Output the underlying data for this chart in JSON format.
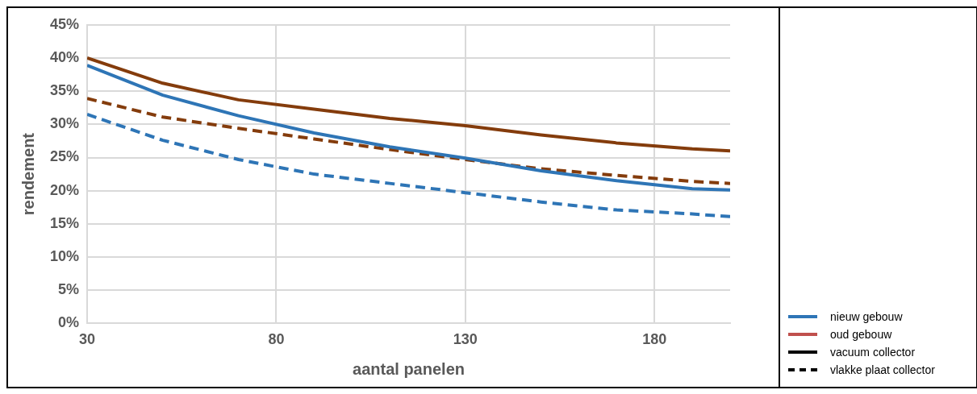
{
  "chart_data": {
    "type": "line",
    "xlabel": "aantal panelen",
    "ylabel": "rendement",
    "xlim": [
      30,
      200
    ],
    "xticks": [
      30,
      80,
      130,
      180
    ],
    "ylim": [
      0,
      45
    ],
    "yticks": [
      {
        "value": 0,
        "label": "0%"
      },
      {
        "value": 5,
        "label": "5%"
      },
      {
        "value": 10,
        "label": "10%"
      },
      {
        "value": 15,
        "label": "15%"
      },
      {
        "value": 20,
        "label": "20%"
      },
      {
        "value": 25,
        "label": "25%"
      },
      {
        "value": 30,
        "label": "30%"
      },
      {
        "value": 35,
        "label": "35%"
      },
      {
        "value": 40,
        "label": "40%"
      },
      {
        "value": 45,
        "label": "45%"
      }
    ],
    "grid": true,
    "marker": "none",
    "x": [
      30,
      50,
      70,
      90,
      110,
      130,
      150,
      170,
      190,
      200
    ],
    "series": [
      {
        "color": "#843c0c",
        "line_style": "solid",
        "values": [
          40,
          36.2,
          33.7,
          32.3,
          30.9,
          29.8,
          28.4,
          27.2,
          26.3,
          26.0
        ]
      },
      {
        "color": "#2e75b6",
        "line_style": "solid",
        "values": [
          38.9,
          34.4,
          31.3,
          28.7,
          26.6,
          24.9,
          23.0,
          21.5,
          20.3,
          20.1
        ]
      },
      {
        "color": "#843c0c",
        "line_style": "dashed",
        "values": [
          33.9,
          31.1,
          29.4,
          27.8,
          26.2,
          24.7,
          23.3,
          22.3,
          21.4,
          21.1
        ]
      },
      {
        "color": "#2e75b6",
        "line_style": "dashed",
        "values": [
          31.5,
          27.6,
          24.7,
          22.5,
          21.1,
          19.7,
          18.3,
          17.1,
          16.5,
          16.1
        ]
      }
    ],
    "annotations": [
      "nieuw gebouw",
      "oud gebouw",
      "vacuum collector",
      "vlakke plaat collector"
    ]
  }
}
